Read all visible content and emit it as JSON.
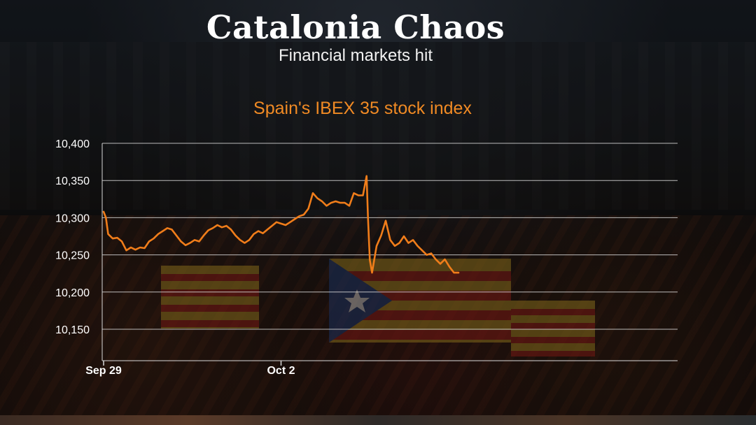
{
  "header": {
    "title": "Catalonia Chaos",
    "subtitle": "Financial markets hit"
  },
  "colors": {
    "line": "#f07d1a",
    "chart_title": "#f08a24",
    "grid": "#d9d9d9",
    "text": "#ffffff"
  },
  "chart_data": {
    "type": "line",
    "title": "Spain's IBEX 35 stock index",
    "xlabel": "",
    "ylabel": "",
    "ylim": [
      10150,
      10400
    ],
    "y_ticks": [
      "10,400",
      "10,350",
      "10,300",
      "10,250",
      "10,200",
      "10,150"
    ],
    "y_tick_values": [
      10400,
      10350,
      10300,
      10250,
      10200,
      10150
    ],
    "x_tick_labels": [
      {
        "label": "Sep 29",
        "t": 0
      },
      {
        "label": "Oct 2",
        "t": 39
      }
    ],
    "x_range": [
      0,
      78
    ],
    "grid": true,
    "legend": "none",
    "series": [
      {
        "points": [
          [
            0,
            10308
          ],
          [
            0.5,
            10300
          ],
          [
            1,
            10278
          ],
          [
            2,
            10272
          ],
          [
            3,
            10273
          ],
          [
            4,
            10268
          ],
          [
            5,
            10256
          ],
          [
            6,
            10260
          ],
          [
            7,
            10257
          ],
          [
            8,
            10260
          ],
          [
            9,
            10259
          ],
          [
            10,
            10268
          ],
          [
            11,
            10272
          ],
          [
            12,
            10278
          ],
          [
            13,
            10282
          ],
          [
            14,
            10286
          ],
          [
            15,
            10284
          ],
          [
            16,
            10276
          ],
          [
            17,
            10268
          ],
          [
            18,
            10263
          ],
          [
            19,
            10266
          ],
          [
            20,
            10270
          ],
          [
            21,
            10268
          ],
          [
            22,
            10276
          ],
          [
            23,
            10283
          ],
          [
            24,
            10286
          ],
          [
            25,
            10290
          ],
          [
            26,
            10287
          ],
          [
            27,
            10289
          ],
          [
            28,
            10284
          ],
          [
            29,
            10276
          ],
          [
            30,
            10270
          ],
          [
            31,
            10266
          ],
          [
            32,
            10270
          ],
          [
            33,
            10278
          ],
          [
            34,
            10282
          ],
          [
            35,
            10279
          ],
          [
            36,
            10284
          ],
          [
            37,
            10289
          ],
          [
            38,
            10294
          ],
          [
            39,
            10292
          ],
          [
            40,
            10290
          ],
          [
            41,
            10294
          ],
          [
            42,
            10298
          ],
          [
            43,
            10302
          ],
          [
            44,
            10304
          ],
          [
            45,
            10312
          ],
          [
            46,
            10333
          ],
          [
            47,
            10326
          ],
          [
            48,
            10322
          ],
          [
            49,
            10316
          ],
          [
            50,
            10320
          ],
          [
            51,
            10322
          ],
          [
            52,
            10320
          ],
          [
            53,
            10320
          ],
          [
            54,
            10316
          ],
          [
            55,
            10333
          ],
          [
            56,
            10330
          ],
          [
            57,
            10330
          ],
          [
            57.8,
            10356
          ],
          [
            58.1,
            10300
          ],
          [
            58.5,
            10243
          ],
          [
            59,
            10226
          ],
          [
            60,
            10262
          ],
          [
            61,
            10276
          ],
          [
            62,
            10296
          ],
          [
            63,
            10270
          ],
          [
            64,
            10262
          ],
          [
            65,
            10266
          ],
          [
            66,
            10275
          ],
          [
            67,
            10266
          ],
          [
            68,
            10270
          ],
          [
            69,
            10262
          ],
          [
            70,
            10256
          ],
          [
            71,
            10250
          ],
          [
            72,
            10252
          ],
          [
            73,
            10244
          ],
          [
            74,
            10238
          ],
          [
            75,
            10244
          ],
          [
            76,
            10234
          ],
          [
            77,
            10226
          ],
          [
            78,
            10226
          ]
        ]
      }
    ]
  }
}
